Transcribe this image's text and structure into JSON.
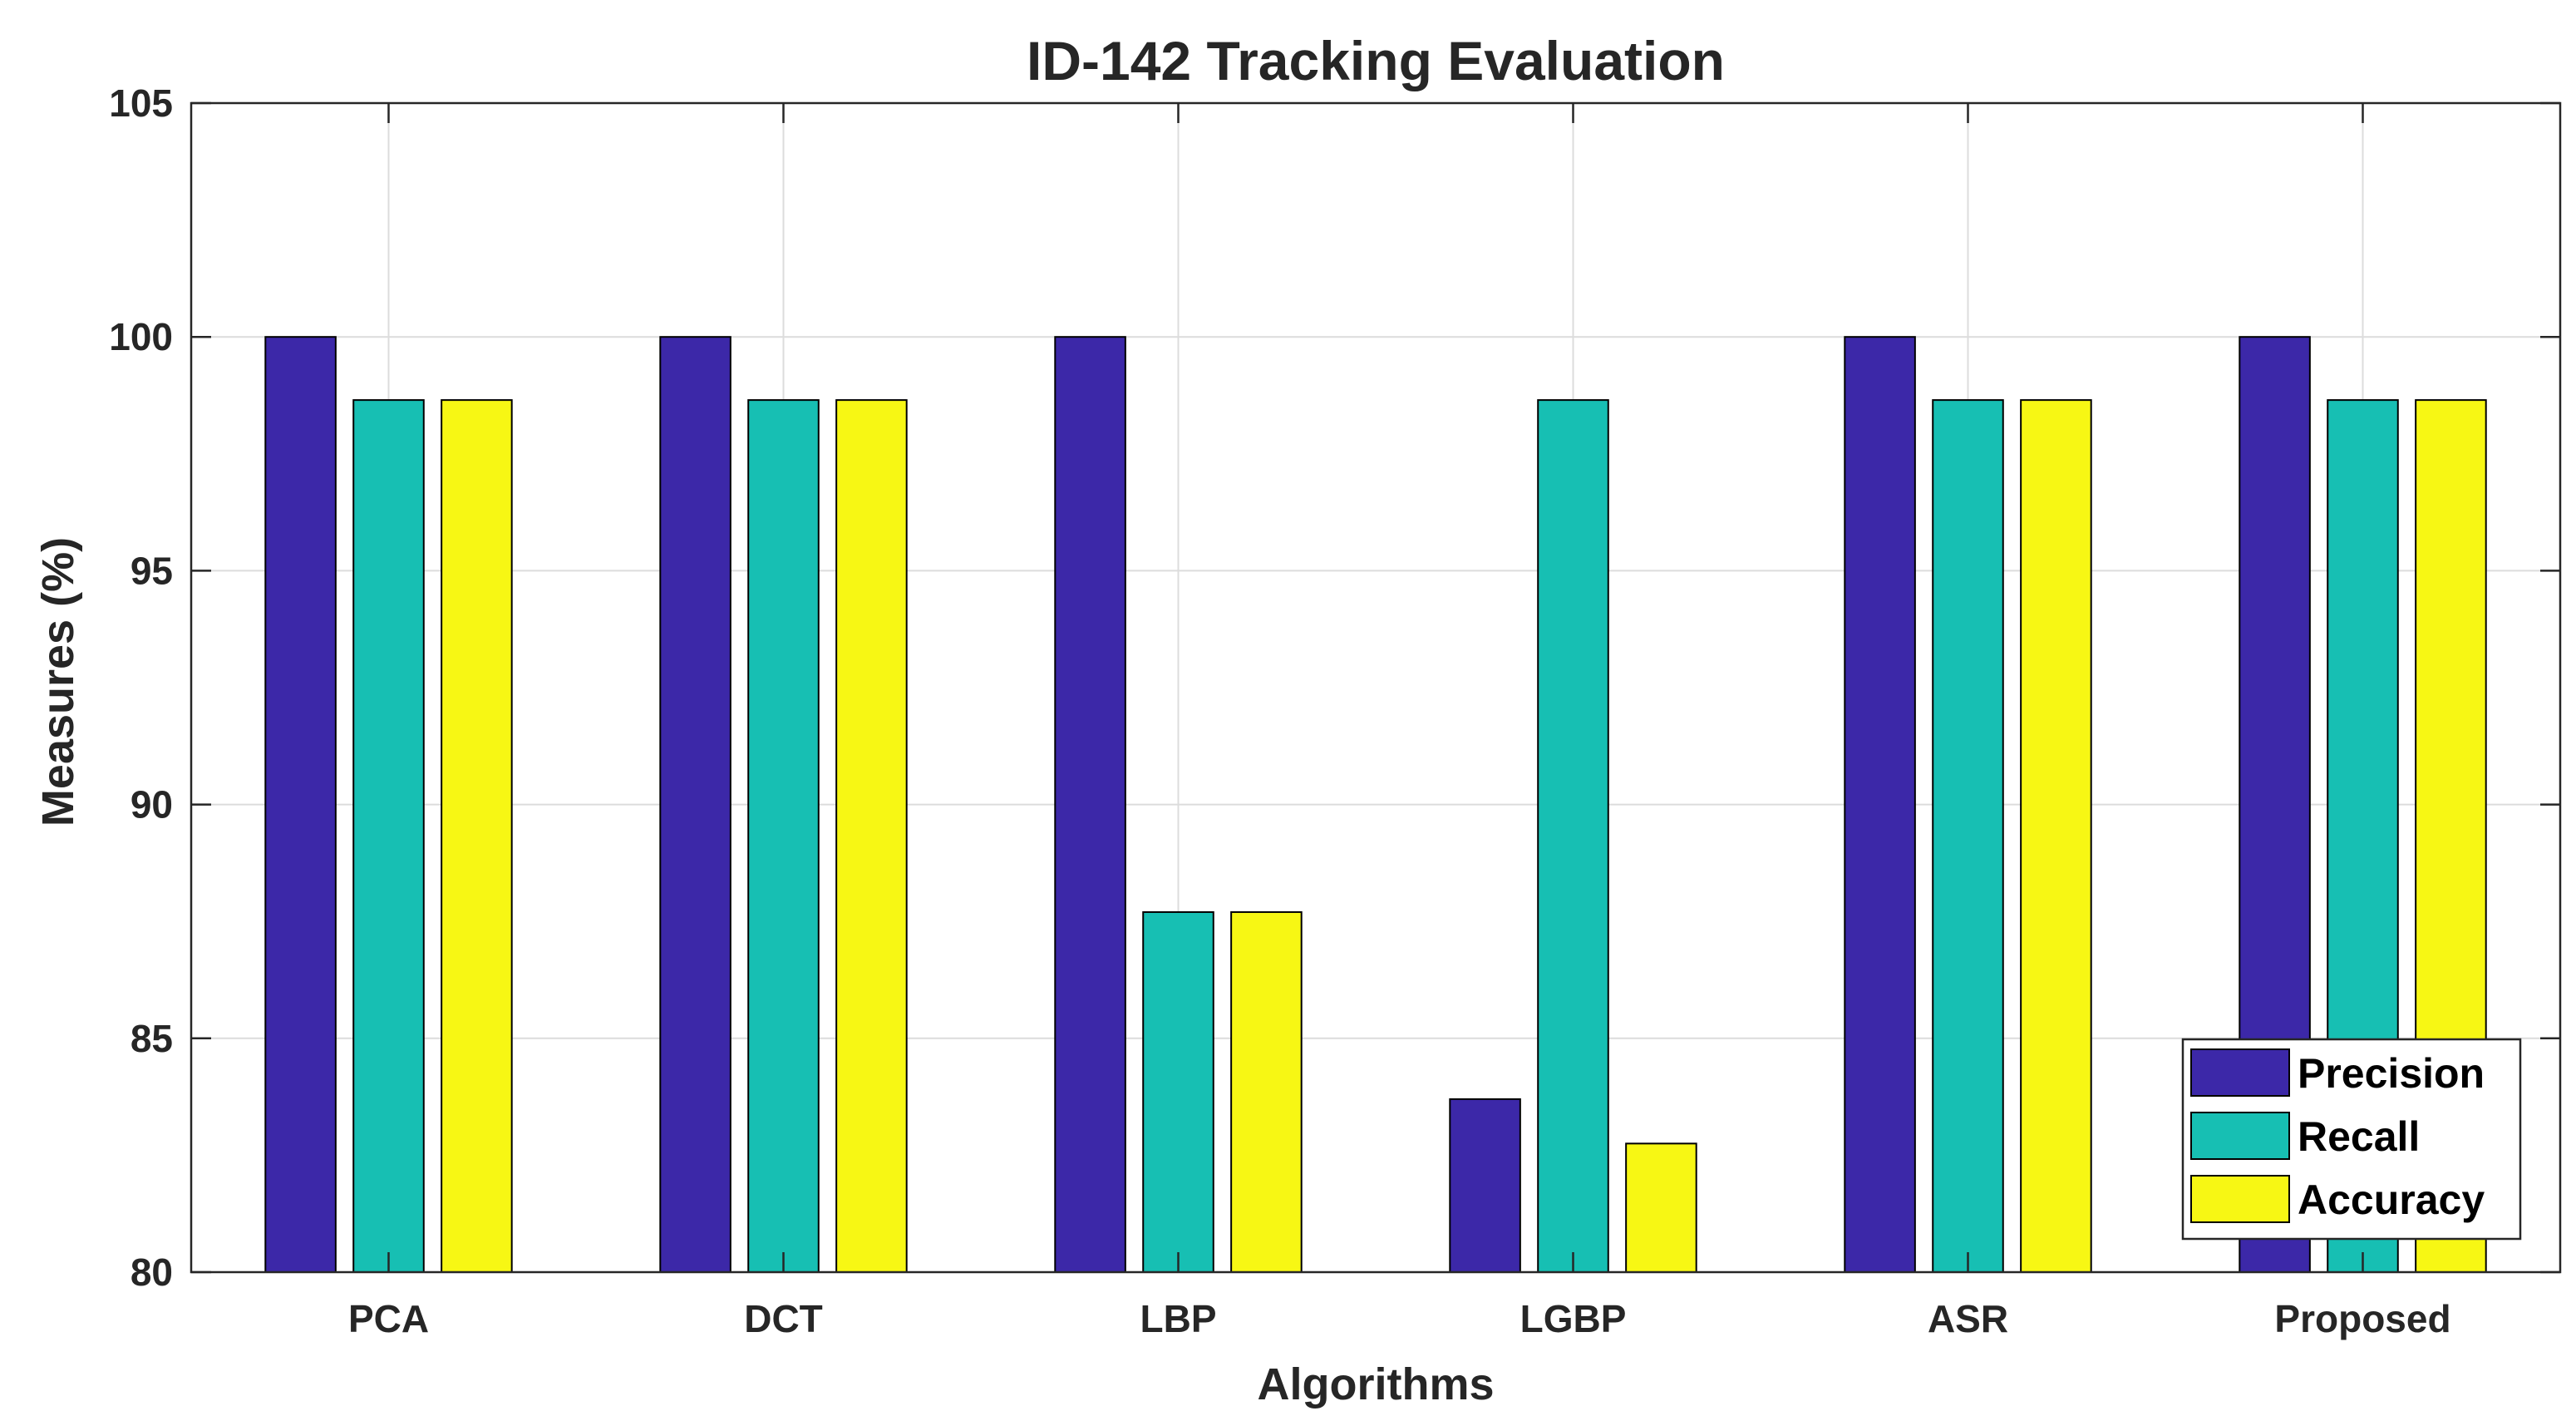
{
  "chart_data": {
    "type": "bar",
    "title": "ID-142 Tracking Evaluation",
    "xlabel": "Algorithms",
    "ylabel": "Measures (%)",
    "ylim": [
      80,
      105
    ],
    "yticks": [
      80,
      85,
      90,
      95,
      100,
      105
    ],
    "grid": true,
    "legend_position": "bottom-right",
    "categories": [
      "PCA",
      "DCT",
      "LBP",
      "LGBP",
      "ASR",
      "Proposed"
    ],
    "series": [
      {
        "name": "Precision",
        "color": "#3C28A8",
        "values": [
          100,
          100,
          100,
          83.7,
          100,
          100
        ]
      },
      {
        "name": "Recall",
        "color": "#17BFB3",
        "values": [
          98.65,
          98.65,
          87.7,
          98.65,
          98.65,
          98.65
        ]
      },
      {
        "name": "Accuracy",
        "color": "#F7F714",
        "values": [
          98.65,
          98.65,
          87.7,
          82.75,
          98.65,
          98.65
        ]
      }
    ]
  }
}
